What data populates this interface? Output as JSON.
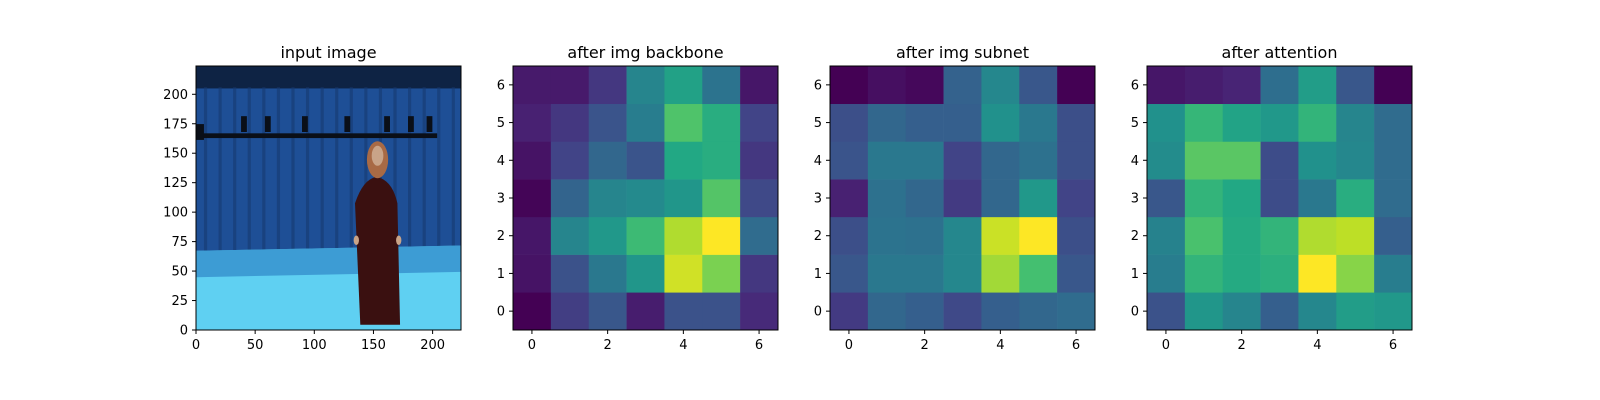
{
  "chart_data": [
    {
      "type": "image",
      "title": "input image",
      "xlim": [
        0,
        224
      ],
      "ylim": [
        224,
        0
      ],
      "xticks": [
        0,
        50,
        100,
        150,
        200
      ],
      "yticks": [
        0,
        25,
        50,
        75,
        100,
        125,
        150,
        175,
        200
      ],
      "content": "photo of a woman in a red patterned dress standing in a blue-curtained capture studio with overhead camera rig",
      "colors": {
        "curtain": "#1e4f96",
        "curtain_dark": "#16386d",
        "ceiling": "#0e2344",
        "floor": "#5fd0f2",
        "floor_far": "#2f86c8",
        "rig": "#0a0f18",
        "dress": "#3a1010",
        "skin": "#c9a488",
        "hair": "#a86a45"
      }
    },
    {
      "type": "heatmap",
      "title": "after img backbone",
      "xlim": [
        -0.5,
        6.5
      ],
      "ylim": [
        6.5,
        -0.5
      ],
      "xticks": [
        0,
        2,
        4,
        6
      ],
      "yticks": [
        0,
        1,
        2,
        3,
        4,
        5,
        6
      ],
      "colormap": "viridis",
      "values": [
        [
          0.0,
          0.18,
          0.27,
          0.08,
          0.25,
          0.25,
          0.12
        ],
        [
          0.05,
          0.25,
          0.4,
          0.52,
          0.93,
          0.8,
          0.16
        ],
        [
          0.06,
          0.45,
          0.53,
          0.68,
          0.88,
          1.0,
          0.35
        ],
        [
          0.01,
          0.32,
          0.45,
          0.47,
          0.52,
          0.73,
          0.22
        ],
        [
          0.05,
          0.2,
          0.33,
          0.26,
          0.6,
          0.62,
          0.16
        ],
        [
          0.09,
          0.16,
          0.26,
          0.42,
          0.72,
          0.62,
          0.2
        ],
        [
          0.07,
          0.07,
          0.16,
          0.45,
          0.57,
          0.38,
          0.06
        ]
      ]
    },
    {
      "type": "heatmap",
      "title": "after img subnet",
      "xlim": [
        -0.5,
        6.5
      ],
      "ylim": [
        6.5,
        -0.5
      ],
      "xticks": [
        0,
        2,
        4,
        6
      ],
      "yticks": [
        0,
        1,
        2,
        3,
        4,
        5,
        6
      ],
      "colormap": "viridis",
      "values": [
        [
          0.17,
          0.33,
          0.3,
          0.22,
          0.3,
          0.33,
          0.35
        ],
        [
          0.27,
          0.4,
          0.4,
          0.46,
          0.86,
          0.7,
          0.27
        ],
        [
          0.24,
          0.38,
          0.37,
          0.46,
          0.92,
          1.0,
          0.24
        ],
        [
          0.09,
          0.37,
          0.33,
          0.17,
          0.33,
          0.53,
          0.2
        ],
        [
          0.26,
          0.4,
          0.4,
          0.2,
          0.33,
          0.37,
          0.24
        ],
        [
          0.24,
          0.33,
          0.3,
          0.3,
          0.5,
          0.4,
          0.24
        ],
        [
          0.0,
          0.04,
          0.02,
          0.31,
          0.46,
          0.27,
          0.0
        ]
      ]
    },
    {
      "type": "heatmap",
      "title": "after attention",
      "xlim": [
        -0.5,
        6.5
      ],
      "ylim": [
        6.5,
        -0.5
      ],
      "xticks": [
        0,
        2,
        4,
        6
      ],
      "yticks": [
        0,
        1,
        2,
        3,
        4,
        5,
        6
      ],
      "colormap": "viridis",
      "values": [
        [
          0.25,
          0.52,
          0.45,
          0.3,
          0.46,
          0.55,
          0.53
        ],
        [
          0.42,
          0.65,
          0.61,
          0.63,
          1.0,
          0.82,
          0.42
        ],
        [
          0.44,
          0.71,
          0.61,
          0.65,
          0.88,
          0.9,
          0.3
        ],
        [
          0.27,
          0.65,
          0.6,
          0.23,
          0.4,
          0.62,
          0.35
        ],
        [
          0.48,
          0.74,
          0.74,
          0.23,
          0.5,
          0.46,
          0.35
        ],
        [
          0.5,
          0.66,
          0.58,
          0.53,
          0.65,
          0.45,
          0.35
        ],
        [
          0.06,
          0.08,
          0.1,
          0.36,
          0.55,
          0.27,
          0.0
        ]
      ]
    }
  ]
}
